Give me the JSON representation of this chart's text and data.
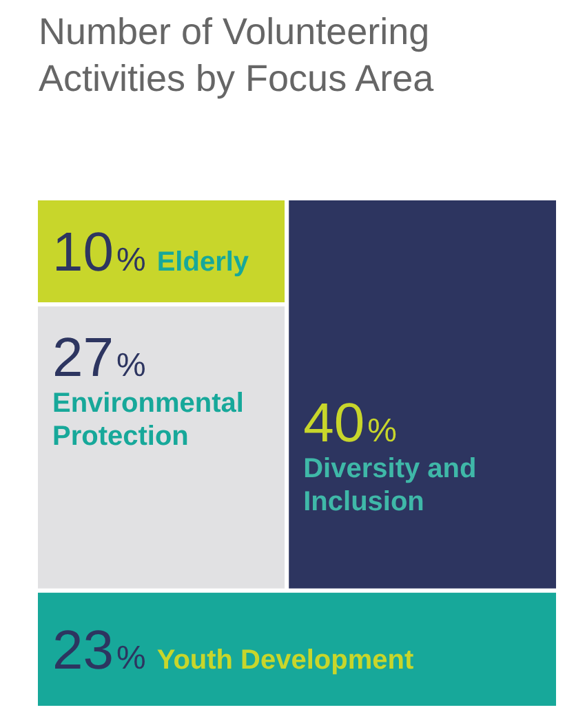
{
  "chart_data": {
    "type": "other",
    "title": "Number of Volunteering Activities by Focus Area",
    "categories": [
      "Elderly",
      "Environmental Protection",
      "Diversity and Inclusion",
      "Youth Development"
    ],
    "values": [
      10,
      27,
      40,
      23
    ],
    "value_labels": [
      "10%",
      "27%",
      "40%",
      "23%"
    ],
    "colors": [
      "#c8d62b",
      "#e1e1e3",
      "#2d3560",
      "#17a89a"
    ]
  }
}
